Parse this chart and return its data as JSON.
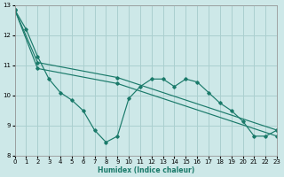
{
  "xlabel": "Humidex (Indice chaleur)",
  "xlim": [
    0,
    23
  ],
  "ylim": [
    8,
    13
  ],
  "xticks": [
    0,
    1,
    2,
    3,
    4,
    5,
    6,
    7,
    8,
    9,
    10,
    11,
    12,
    13,
    14,
    15,
    16,
    17,
    18,
    19,
    20,
    21,
    22,
    23
  ],
  "yticks": [
    8,
    9,
    10,
    11,
    12,
    13
  ],
  "bg_color": "#cde8e8",
  "grid_color": "#aacfcf",
  "line_color": "#1a7a6a",
  "line1_x": [
    0,
    1,
    2,
    3,
    4,
    5,
    6,
    7,
    8,
    9,
    10,
    11,
    12,
    13,
    14,
    15,
    16,
    17,
    18,
    19,
    20,
    21,
    22,
    23
  ],
  "line1_y": [
    12.85,
    12.2,
    11.3,
    10.55,
    10.1,
    9.85,
    9.5,
    8.85,
    8.45,
    8.65,
    9.9,
    10.3,
    10.55,
    10.55,
    10.3,
    10.55,
    10.45,
    10.1,
    9.75,
    9.5,
    9.15,
    8.65,
    8.65,
    8.85
  ],
  "line2_x": [
    0,
    2,
    9,
    23
  ],
  "line2_y": [
    12.85,
    11.1,
    10.6,
    8.85
  ],
  "line3_x": [
    0,
    2,
    9,
    23
  ],
  "line3_y": [
    12.85,
    10.9,
    10.4,
    8.65
  ]
}
